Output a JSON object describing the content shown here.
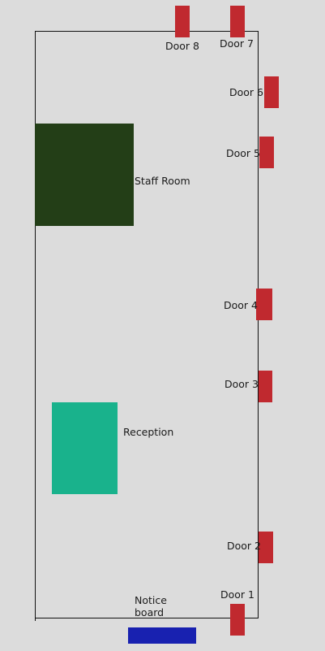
{
  "colors": {
    "background": "#dcdcdc",
    "outline": "#111111",
    "door": "#c0292f",
    "staff_room": "#233e17",
    "reception": "#19b28c",
    "notice_board": "#1821b0"
  },
  "areas": {
    "staff_room": {
      "label": "Staff Room"
    },
    "reception": {
      "label": "Reception"
    },
    "notice_board": {
      "label": "Notice board"
    }
  },
  "doors": {
    "door_1": {
      "label": "Door 1"
    },
    "door_2": {
      "label": "Door 2"
    },
    "door_3": {
      "label": "Door 3"
    },
    "door_4": {
      "label": "Door 4"
    },
    "door_5": {
      "label": "Door 5"
    },
    "door_6": {
      "label": "Door 6"
    },
    "door_7": {
      "label": "Door 7"
    },
    "door_8": {
      "label": "Door 8"
    }
  }
}
